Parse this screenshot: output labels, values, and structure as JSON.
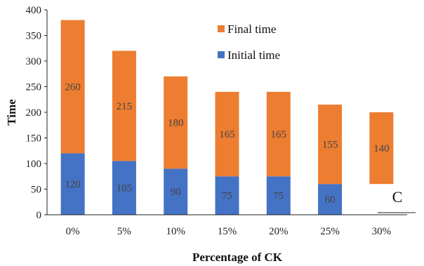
{
  "chart_data": {
    "type": "bar",
    "stacked": true,
    "categories": [
      "0%",
      "5%",
      "10%",
      "15%",
      "20%",
      "25%",
      "30%"
    ],
    "series": [
      {
        "name": "Initial time",
        "values": [
          120,
          105,
          90,
          75,
          75,
          60,
          null
        ],
        "color": "#4472C4"
      },
      {
        "name": "Final time",
        "values": [
          260,
          215,
          180,
          165,
          165,
          155,
          140
        ],
        "color": "#ED7D31"
      }
    ],
    "data_labels": {
      "Initial time": [
        "120",
        "105",
        "90",
        "75",
        "75",
        "60",
        ""
      ],
      "Final time": [
        "260",
        "215",
        "180",
        "165",
        "165",
        "155",
        "140"
      ]
    },
    "xlabel": "Percentage of CK",
    "ylabel": "Time",
    "ylim": [
      0,
      400
    ],
    "yticks": [
      0,
      50,
      100,
      150,
      200,
      250,
      300,
      350,
      400
    ],
    "grid": false,
    "legend": "top-right",
    "legend_order": [
      "Final time",
      "Initial time"
    ],
    "panel_label": "C"
  }
}
